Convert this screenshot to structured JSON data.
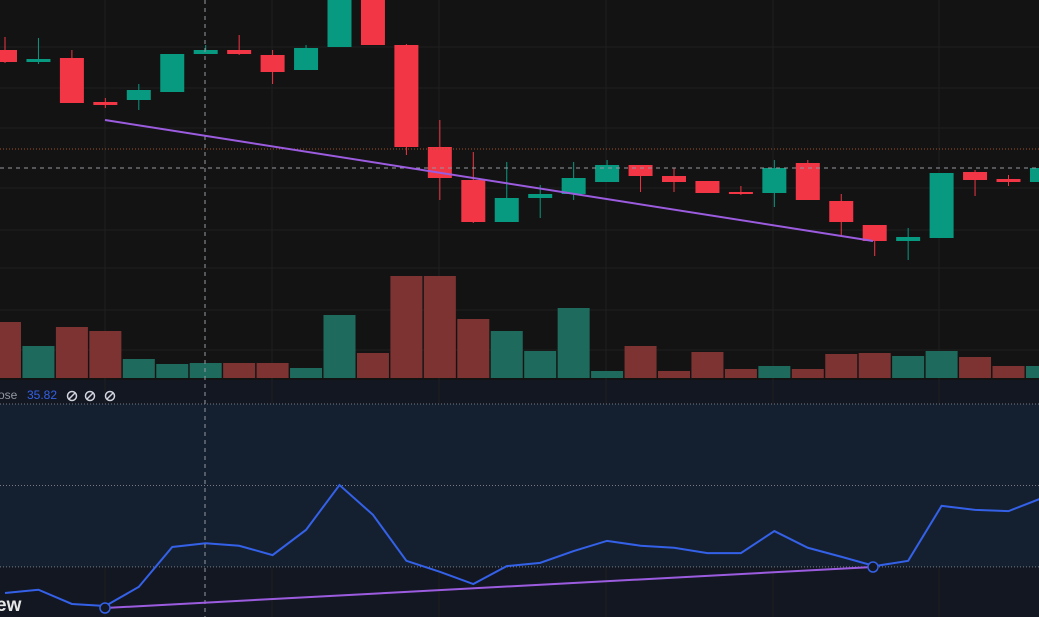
{
  "chart_data": [
    {
      "type": "candlestick",
      "open": [
        350,
        338,
        342,
        298,
        300,
        308,
        346,
        350,
        345,
        330,
        353,
        400,
        355,
        253,
        220,
        178,
        202,
        206,
        218,
        235,
        224,
        219,
        208,
        207,
        237,
        199,
        175,
        159,
        162,
        228,
        221,
        218
      ],
      "high": [
        363,
        362,
        350,
        302,
        316,
        346,
        355,
        365,
        350,
        355,
        400,
        400,
        356,
        280,
        248,
        238,
        215,
        238,
        240,
        235,
        232,
        219,
        214,
        240,
        240,
        206,
        175,
        172,
        227,
        230,
        225,
        235
      ],
      "low": [
        337,
        336,
        297,
        292,
        290,
        308,
        346,
        345,
        316,
        330,
        353,
        355,
        245,
        200,
        177,
        178,
        182,
        200,
        218,
        208,
        208,
        207,
        205,
        193,
        200,
        165,
        144,
        140,
        162,
        204,
        214,
        218
      ],
      "close": [
        338,
        341,
        297,
        295,
        310,
        346,
        350,
        346,
        328,
        352,
        400,
        355,
        253,
        222,
        178,
        202,
        206,
        222,
        235,
        224,
        218,
        207,
        206,
        232,
        200,
        178,
        159,
        163,
        227,
        220,
        218,
        232
      ],
      "ylim": [
        22,
        400
      ],
      "up_color": "#089981",
      "down_color": "#f23645"
    },
    {
      "type": "bar",
      "values": [
        56,
        32,
        51,
        47,
        19,
        14,
        15,
        15,
        15,
        10,
        63,
        25,
        102,
        102,
        59,
        47,
        27,
        70,
        7,
        32,
        7,
        26,
        9,
        12,
        9,
        24,
        25,
        22,
        27,
        21,
        12,
        12
      ],
      "ylim": [
        0,
        378
      ],
      "up_color": "#1e6b5e",
      "down_color": "#7e3333"
    },
    {
      "type": "line",
      "label": "ose",
      "values": [
        23.6,
        24.4,
        20.9,
        20.4,
        25.1,
        34.9,
        35.82,
        35.2,
        32.9,
        39.1,
        50.1,
        42.8,
        31.5,
        28.8,
        25.8,
        30.2,
        31.0,
        33.9,
        36.4,
        35.2,
        34.7,
        33.4,
        33.4,
        38.8,
        34.7,
        32.5,
        30.2,
        31.5,
        45.0,
        44.0,
        43.7,
        46.9
      ],
      "ylim": [
        17.7,
        75.9
      ],
      "levels": [
        70,
        50,
        30
      ],
      "color": "#3461e8",
      "watermark": "ew"
    }
  ]
}
